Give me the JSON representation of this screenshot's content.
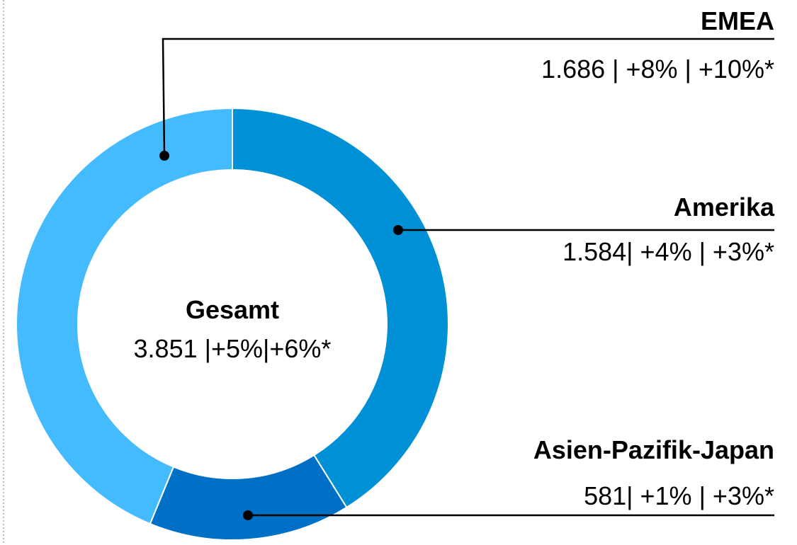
{
  "chart_data": {
    "type": "donut",
    "categories": [
      "Amerika",
      "Asien-Pazifik-Japan",
      "EMEA"
    ],
    "values": [
      1584,
      581,
      1686
    ],
    "value_labels": [
      "1.584| +4% | +3%*",
      "581| +1% | +3%*",
      "1.686 | +8% | +10%*"
    ],
    "colors": [
      "#0090d6",
      "#0070c6",
      "#44bbff"
    ],
    "center_title": "Gesamt",
    "center_label": "3.851 |+5%|+6%*"
  }
}
